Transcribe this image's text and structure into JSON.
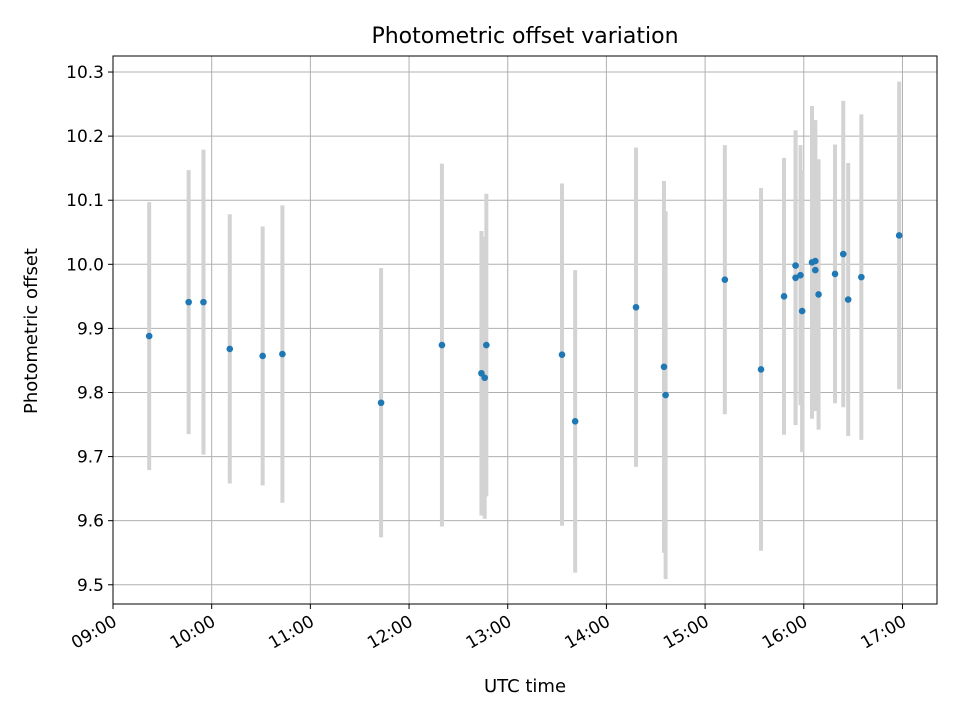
{
  "chart_data": {
    "type": "scatter",
    "title": "Photometric offset variation",
    "xlabel": "UTC time",
    "ylabel": "Photometric offset",
    "xlim": [
      "09:00",
      "17:21"
    ],
    "ylim": [
      9.47,
      10.325
    ],
    "grid": true,
    "x_ticks": [
      "09:00",
      "10:00",
      "11:00",
      "12:00",
      "13:00",
      "14:00",
      "15:00",
      "16:00",
      "17:00"
    ],
    "y_ticks": [
      "9.5",
      "9.6",
      "9.7",
      "9.8",
      "9.9",
      "10.0",
      "10.1",
      "10.2",
      "10.3"
    ],
    "points": [
      {
        "x": "09:22",
        "y": 9.888,
        "err": 0.209
      },
      {
        "x": "09:46",
        "y": 9.941,
        "err": 0.206
      },
      {
        "x": "09:55",
        "y": 9.941,
        "err": 0.238
      },
      {
        "x": "10:11",
        "y": 9.868,
        "err": 0.21
      },
      {
        "x": "10:31",
        "y": 9.857,
        "err": 0.202
      },
      {
        "x": "10:43",
        "y": 9.86,
        "err": 0.232
      },
      {
        "x": "11:43",
        "y": 9.784,
        "err": 0.21
      },
      {
        "x": "12:20",
        "y": 9.874,
        "err": 0.283
      },
      {
        "x": "12:44",
        "y": 9.83,
        "err": 0.222
      },
      {
        "x": "12:46",
        "y": 9.823,
        "err": 0.22
      },
      {
        "x": "12:47",
        "y": 9.874,
        "err": 0.236
      },
      {
        "x": "13:33",
        "y": 9.859,
        "err": 0.267
      },
      {
        "x": "13:41",
        "y": 9.755,
        "err": 0.236
      },
      {
        "x": "14:18",
        "y": 9.933,
        "err": 0.249
      },
      {
        "x": "14:35",
        "y": 9.84,
        "err": 0.29
      },
      {
        "x": "14:36",
        "y": 9.796,
        "err": 0.287
      },
      {
        "x": "15:12",
        "y": 9.976,
        "err": 0.21
      },
      {
        "x": "15:34",
        "y": 9.836,
        "err": 0.283
      },
      {
        "x": "15:48",
        "y": 9.95,
        "err": 0.216
      },
      {
        "x": "15:55",
        "y": 9.998,
        "err": 0.211
      },
      {
        "x": "15:55",
        "y": 9.979,
        "err": 0.23
      },
      {
        "x": "15:58",
        "y": 9.983,
        "err": 0.203
      },
      {
        "x": "15:59",
        "y": 9.927,
        "err": 0.22
      },
      {
        "x": "16:05",
        "y": 10.003,
        "err": 0.244
      },
      {
        "x": "16:07",
        "y": 10.005,
        "err": 0.22
      },
      {
        "x": "16:07",
        "y": 9.991,
        "err": 0.22
      },
      {
        "x": "16:09",
        "y": 9.953,
        "err": 0.211
      },
      {
        "x": "16:19",
        "y": 9.985,
        "err": 0.202
      },
      {
        "x": "16:24",
        "y": 10.016,
        "err": 0.239
      },
      {
        "x": "16:27",
        "y": 9.945,
        "err": 0.213
      },
      {
        "x": "16:35",
        "y": 9.98,
        "err": 0.254
      },
      {
        "x": "16:58",
        "y": 10.045,
        "err": 0.24
      }
    ],
    "colors": {
      "point": "#1f77b4",
      "errorbar": "#d3d3d3",
      "grid": "#b0b0b0"
    }
  }
}
